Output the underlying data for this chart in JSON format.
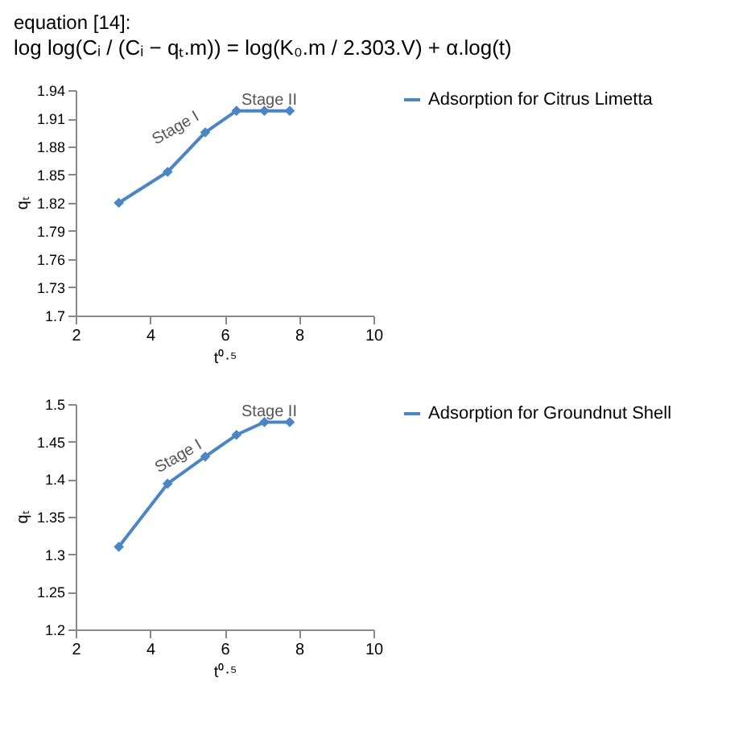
{
  "chart_data": [
    {
      "type": "line",
      "title": "equation [14]:",
      "subtitle": "log log(Cᵢ / (Cᵢ − qₜ.m)) = log(K₀.m / 2.303.V) + α.log(t)",
      "xlabel": "t⁰·⁵",
      "ylabel": "qₜ",
      "x": [
        3.16,
        4.47,
        5.48,
        6.32,
        7.07,
        7.75
      ],
      "series": [
        {
          "name": "Adsorption for Citrus Limetta",
          "color": "#4a86c5",
          "values": [
            1.82,
            1.853,
            1.895,
            1.918,
            1.918,
            1.918
          ]
        }
      ],
      "xlim": [
        2,
        10
      ],
      "xticks": [
        2,
        4,
        6,
        8,
        10
      ],
      "ylim": [
        1.7,
        1.94
      ],
      "yticks": [
        1.7,
        1.73,
        1.76,
        1.79,
        1.82,
        1.85,
        1.88,
        1.91,
        1.94
      ],
      "annotations": [
        {
          "text": "Stage I",
          "x": 4.9,
          "y": 1.885
        },
        {
          "text": "Stage II",
          "x": 7.2,
          "y": 1.93
        }
      ],
      "marker": "diamond",
      "line_style": "solid",
      "grid": false,
      "legend": "right"
    },
    {
      "type": "line",
      "xlabel": "t⁰·⁵",
      "ylabel": "qₜ",
      "x": [
        3.16,
        4.47,
        5.48,
        6.32,
        7.07,
        7.75
      ],
      "series": [
        {
          "name": "Adsorption for Groundnut Shell",
          "color": "#4a86c5",
          "values": [
            1.31,
            1.394,
            1.43,
            1.459,
            1.476,
            1.476
          ]
        }
      ],
      "xlim": [
        2,
        10
      ],
      "xticks": [
        2,
        4,
        6,
        8,
        10
      ],
      "ylim": [
        1.2,
        1.5
      ],
      "yticks": [
        1.2,
        1.25,
        1.3,
        1.35,
        1.4,
        1.45,
        1.5
      ],
      "annotations": [
        {
          "text": "Stage I",
          "x": 4.975,
          "y": 1.412
        },
        {
          "text": "Stage II",
          "x": 7.2,
          "y": 1.49
        }
      ],
      "marker": "diamond",
      "line_style": "solid",
      "grid": false,
      "legend": "right"
    }
  ]
}
